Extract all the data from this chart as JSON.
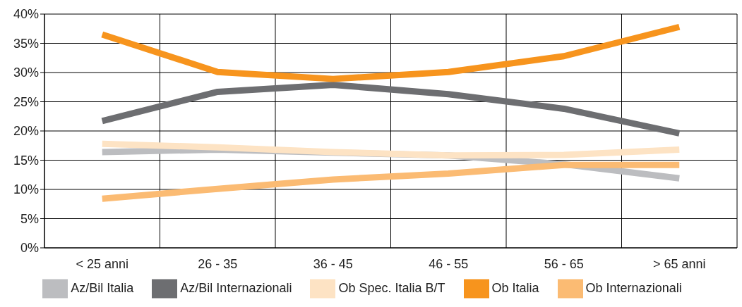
{
  "chart_data": {
    "type": "line",
    "categories": [
      "< 25 anni",
      "26 - 35",
      "36 - 45",
      "46 - 55",
      "56 - 65",
      "> 65 anni"
    ],
    "series": [
      {
        "name": "Az/Bil Italia",
        "color": "#bcbdc0",
        "values": [
          16.4,
          16.8,
          16.3,
          15.8,
          14.3,
          11.9
        ]
      },
      {
        "name": "Az/Bil Internazionali",
        "color": "#6d6e71",
        "values": [
          21.7,
          26.7,
          27.9,
          26.3,
          23.8,
          19.6
        ]
      },
      {
        "name": "Ob Spec. Italia B/T",
        "color": "#fde3c4",
        "values": [
          17.8,
          17.2,
          16.4,
          15.8,
          15.9,
          16.8
        ]
      },
      {
        "name": "Ob Italia",
        "color": "#f7941d",
        "values": [
          36.5,
          30.1,
          28.9,
          30.1,
          32.8,
          37.8
        ]
      },
      {
        "name": "Ob Internazionali",
        "color": "#fbbb73",
        "values": [
          8.4,
          10.1,
          11.7,
          12.7,
          14.2,
          14.2
        ]
      }
    ],
    "ylim": [
      0,
      40
    ],
    "yticks": [
      {
        "value": 0,
        "label": "0%"
      },
      {
        "value": 5,
        "label": "5%"
      },
      {
        "value": 10,
        "label": "10%"
      },
      {
        "value": 15,
        "label": "15%"
      },
      {
        "value": 20,
        "label": "20%"
      },
      {
        "value": 25,
        "label": "25%"
      },
      {
        "value": 30,
        "label": "30%"
      },
      {
        "value": 35,
        "label": "35%"
      },
      {
        "value": 40,
        "label": "40%"
      }
    ],
    "grid": true,
    "legend": "bottom",
    "marker": "none",
    "line_style": "solid"
  }
}
